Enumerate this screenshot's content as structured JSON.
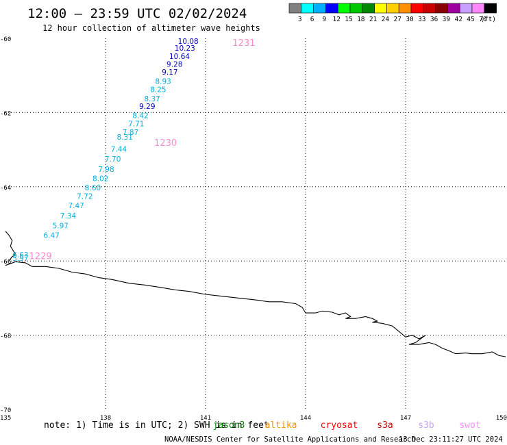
{
  "header": {
    "title": "12:00 – 23:59 UTC 02/02/2024",
    "subtitle": "12 hour collection of altimeter wave heights"
  },
  "colorbar": {
    "unit": "(ft)",
    "swatches": [
      {
        "color": "#808080",
        "label": "3"
      },
      {
        "color": "#00ffff",
        "label": "6"
      },
      {
        "color": "#00b0ff",
        "label": "9"
      },
      {
        "color": "#0000ff",
        "label": "12"
      },
      {
        "color": "#00ff00",
        "label": "15"
      },
      {
        "color": "#00c800",
        "label": "18"
      },
      {
        "color": "#008800",
        "label": "21"
      },
      {
        "color": "#ffff00",
        "label": "24"
      },
      {
        "color": "#ffd000",
        "label": "27"
      },
      {
        "color": "#ff9000",
        "label": "30"
      },
      {
        "color": "#ff0000",
        "label": "33"
      },
      {
        "color": "#c80000",
        "label": "36"
      },
      {
        "color": "#880000",
        "label": "39"
      },
      {
        "color": "#a000a0",
        "label": "42"
      },
      {
        "color": "#c8a0ff",
        "label": "45"
      },
      {
        "color": "#ff88ff",
        "label": "70"
      },
      {
        "color": "#000000",
        "label": ""
      }
    ]
  },
  "axes": {
    "lat_labels": [
      {
        "value": -60,
        "label": "-60"
      },
      {
        "value": -62,
        "label": "-62"
      },
      {
        "value": -64,
        "label": "-64"
      },
      {
        "value": -66,
        "label": "-66"
      },
      {
        "value": -68,
        "label": "-68"
      },
      {
        "value": -70,
        "label": "-70"
      }
    ],
    "lon_labels": [
      {
        "value": 135,
        "label": "135"
      },
      {
        "value": 138,
        "label": "138"
      },
      {
        "value": 141,
        "label": "141"
      },
      {
        "value": 144,
        "label": "144"
      },
      {
        "value": 147,
        "label": "147"
      },
      {
        "value": 150,
        "label": "150"
      }
    ],
    "lon_range": [
      135,
      150
    ],
    "lat_range": [
      -70,
      -60
    ],
    "grid": "dotted"
  },
  "observations": [
    {
      "lon": 140.48,
      "lat": -60.15,
      "value": "10.08",
      "color": "#0000c0"
    },
    {
      "lon": 140.38,
      "lat": -60.33,
      "value": "10.23",
      "color": "#0000c0"
    },
    {
      "lon": 140.22,
      "lat": -60.55,
      "value": "10.64",
      "color": "#0000c0"
    },
    {
      "lon": 140.07,
      "lat": -60.77,
      "value": "9.28",
      "color": "#0000c0"
    },
    {
      "lon": 139.93,
      "lat": -60.98,
      "value": "9.17",
      "color": "#0000c0"
    },
    {
      "lon": 139.73,
      "lat": -61.23,
      "value": "8.93",
      "color": "#00b0e0"
    },
    {
      "lon": 139.58,
      "lat": -61.45,
      "value": "8.25",
      "color": "#00b0e0"
    },
    {
      "lon": 139.4,
      "lat": -61.7,
      "value": "8.37",
      "color": "#00b0e0"
    },
    {
      "lon": 139.25,
      "lat": -61.9,
      "value": "9.29",
      "color": "#0000c0"
    },
    {
      "lon": 139.05,
      "lat": -62.15,
      "value": "8.42",
      "color": "#00b0e0"
    },
    {
      "lon": 138.92,
      "lat": -62.37,
      "value": "7.71",
      "color": "#00b0e0"
    },
    {
      "lon": 138.75,
      "lat": -62.6,
      "value": "7.87",
      "color": "#00b0e0"
    },
    {
      "lon": 138.58,
      "lat": -62.73,
      "value": "8.31",
      "color": "#00b0e0"
    },
    {
      "lon": 138.4,
      "lat": -63.05,
      "value": "7.44",
      "color": "#00b0e0"
    },
    {
      "lon": 138.22,
      "lat": -63.32,
      "value": "7.70",
      "color": "#00b0e0"
    },
    {
      "lon": 138.02,
      "lat": -63.6,
      "value": "7.98",
      "color": "#00b0e0"
    },
    {
      "lon": 137.85,
      "lat": -63.85,
      "value": "8.02",
      "color": "#00b0e0"
    },
    {
      "lon": 137.62,
      "lat": -64.1,
      "value": "8.60",
      "color": "#00b0e0"
    },
    {
      "lon": 137.38,
      "lat": -64.33,
      "value": "7.72",
      "color": "#00b0e0"
    },
    {
      "lon": 137.12,
      "lat": -64.58,
      "value": "7.47",
      "color": "#00b0e0"
    },
    {
      "lon": 136.88,
      "lat": -64.85,
      "value": "7.34",
      "color": "#00b0e0"
    },
    {
      "lon": 136.65,
      "lat": -65.12,
      "value": "5.97",
      "color": "#00b0e0"
    },
    {
      "lon": 136.38,
      "lat": -65.38,
      "value": "6.47",
      "color": "#00b0e0"
    },
    {
      "lon": 135.45,
      "lat": -65.9,
      "value": "6.63",
      "color": "#00b0e0"
    },
    {
      "lon": 135.45,
      "lat": -66.0,
      "value": "5.97",
      "color": "#00b0e0"
    }
  ],
  "pass_labels": [
    {
      "lon": 142.15,
      "lat": -60.2,
      "label": "1231",
      "color": "#ff88cc"
    },
    {
      "lon": 139.8,
      "lat": -62.9,
      "label": "1230",
      "color": "#ff88cc"
    },
    {
      "lon": 136.05,
      "lat": -65.95,
      "label": "1229",
      "color": "#ff88cc"
    }
  ],
  "coastline": {
    "west_cape": [
      [
        135,
        -65.2
      ],
      [
        135.1,
        -65.3
      ],
      [
        135.2,
        -65.45
      ],
      [
        135.15,
        -65.6
      ],
      [
        135.25,
        -65.75
      ],
      [
        135.3,
        -65.82
      ],
      [
        135.18,
        -65.9
      ],
      [
        135.12,
        -66.0
      ]
    ],
    "main": [
      [
        135,
        -66.12
      ],
      [
        135.3,
        -66.02
      ],
      [
        135.6,
        -66.05
      ],
      [
        135.8,
        -66.15
      ],
      [
        136.2,
        -66.15
      ],
      [
        136.6,
        -66.2
      ],
      [
        137.0,
        -66.3
      ],
      [
        137.4,
        -66.35
      ],
      [
        137.8,
        -66.45
      ],
      [
        138.2,
        -66.5
      ],
      [
        138.7,
        -66.6
      ],
      [
        139.2,
        -66.65
      ],
      [
        139.7,
        -66.72
      ],
      [
        140.1,
        -66.78
      ],
      [
        140.5,
        -66.82
      ],
      [
        141.0,
        -66.9
      ],
      [
        141.5,
        -66.95
      ],
      [
        142.0,
        -67.0
      ],
      [
        142.5,
        -67.05
      ],
      [
        142.9,
        -67.1
      ],
      [
        143.3,
        -67.1
      ],
      [
        143.7,
        -67.15
      ],
      [
        143.9,
        -67.25
      ],
      [
        144.0,
        -67.4
      ],
      [
        144.3,
        -67.4
      ],
      [
        144.5,
        -67.35
      ],
      [
        144.8,
        -67.38
      ],
      [
        145.0,
        -67.45
      ],
      [
        145.2,
        -67.4
      ],
      [
        145.35,
        -67.5
      ],
      [
        145.2,
        -67.55
      ],
      [
        145.5,
        -67.55
      ],
      [
        145.8,
        -67.5
      ],
      [
        146.0,
        -67.55
      ],
      [
        146.15,
        -67.62
      ],
      [
        146.0,
        -67.65
      ],
      [
        146.3,
        -67.68
      ],
      [
        146.6,
        -67.75
      ],
      [
        146.8,
        -67.9
      ],
      [
        147.0,
        -68.05
      ],
      [
        147.2,
        -68.0
      ],
      [
        147.4,
        -68.1
      ],
      [
        147.6,
        -68.0
      ],
      [
        147.3,
        -68.2
      ],
      [
        147.1,
        -68.25
      ],
      [
        147.4,
        -68.25
      ],
      [
        147.7,
        -68.2
      ],
      [
        147.9,
        -68.25
      ],
      [
        148.1,
        -68.35
      ],
      [
        148.3,
        -68.42
      ],
      [
        148.5,
        -68.5
      ],
      [
        148.8,
        -68.48
      ],
      [
        149.0,
        -68.5
      ],
      [
        149.3,
        -68.5
      ],
      [
        149.6,
        -68.45
      ],
      [
        149.8,
        -68.55
      ],
      [
        150,
        -68.58
      ]
    ]
  },
  "note": {
    "prefix": "note: 1) Time is in UTC; 2) SWH is in feet",
    "satellites": [
      {
        "label": "jason3",
        "color": "#008800"
      },
      {
        "label": "altika",
        "color": "#ff9000"
      },
      {
        "label": "cryosat",
        "color": "#ff0000"
      },
      {
        "label": "s3a",
        "color": "#c80000"
      },
      {
        "label": "s3b",
        "color": "#c8a0ff"
      },
      {
        "label": "swot",
        "color": "#ff88ff"
      }
    ]
  },
  "footer": {
    "center": "NOAA/NESDIS Center for Satellite Applications and Research",
    "timestamp": "13 Dec 23:11:27 UTC 2024"
  }
}
